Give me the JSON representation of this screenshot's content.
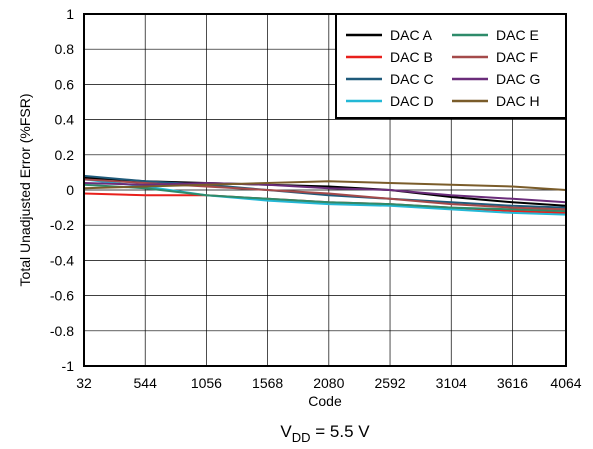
{
  "chart_data": {
    "type": "line",
    "xlabel": "Code",
    "ylabel": "Total Unadjusted Error (%FSR)",
    "caption": {
      "prefix": "V",
      "subscript": "DD",
      "suffix": " = 5.5 V"
    },
    "x_ticks": [
      32,
      544,
      1056,
      1568,
      2080,
      2592,
      3104,
      3616,
      4064
    ],
    "y_ticks": [
      1,
      0.8,
      0.6,
      0.4,
      0.2,
      0,
      -0.2,
      -0.4,
      -0.6,
      -0.8,
      -1
    ],
    "y_tick_labels": [
      "1",
      "0.8",
      "0.6",
      "0.4",
      "0.2",
      "0",
      "-0.2",
      "-0.4",
      "-0.6",
      "-0.8",
      "-1"
    ],
    "xlim": [
      32,
      4064
    ],
    "ylim": [
      -1,
      1
    ],
    "grid": true,
    "legend_position": "top-right",
    "x": [
      32,
      544,
      1056,
      1568,
      2080,
      2592,
      3104,
      3616,
      4064
    ],
    "series": [
      {
        "name": "DAC A",
        "color": "#000000",
        "values": [
          0.07,
          0.05,
          0.04,
          0.03,
          0.02,
          0.0,
          -0.04,
          -0.07,
          -0.09
        ]
      },
      {
        "name": "DAC B",
        "color": "#e8201c",
        "values": [
          -0.02,
          -0.03,
          -0.03,
          -0.05,
          -0.07,
          -0.08,
          -0.1,
          -0.12,
          -0.13
        ]
      },
      {
        "name": "DAC C",
        "color": "#1f5a7a",
        "values": [
          0.08,
          0.05,
          0.03,
          0.0,
          -0.03,
          -0.05,
          -0.07,
          -0.09,
          -0.1
        ]
      },
      {
        "name": "DAC D",
        "color": "#23b8d6",
        "values": [
          0.06,
          0.02,
          -0.03,
          -0.06,
          -0.08,
          -0.09,
          -0.11,
          -0.13,
          -0.14
        ]
      },
      {
        "name": "DAC E",
        "color": "#2e8b6a",
        "values": [
          0.03,
          0.01,
          -0.03,
          -0.05,
          -0.07,
          -0.08,
          -0.1,
          -0.11,
          -0.12
        ]
      },
      {
        "name": "DAC F",
        "color": "#a44a4a",
        "values": [
          0.06,
          0.04,
          0.02,
          0.0,
          -0.02,
          -0.05,
          -0.08,
          -0.1,
          -0.11
        ]
      },
      {
        "name": "DAC G",
        "color": "#6a2c7a",
        "values": [
          0.04,
          0.03,
          0.04,
          0.03,
          0.01,
          0.0,
          -0.03,
          -0.05,
          -0.07
        ]
      },
      {
        "name": "DAC H",
        "color": "#7a5c2a",
        "values": [
          0.01,
          0.02,
          0.03,
          0.04,
          0.05,
          0.04,
          0.03,
          0.02,
          0.0
        ]
      }
    ]
  }
}
